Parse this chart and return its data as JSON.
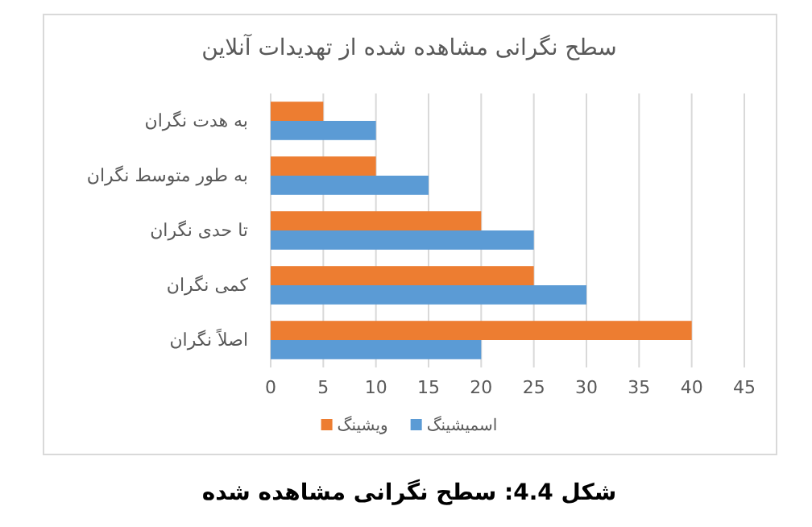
{
  "chart_data": {
    "type": "bar",
    "orientation": "horizontal",
    "title": "سطح نگرانی مشاهده شده از تهدیدات آنلاین",
    "categories": [
      "به هدت نگران",
      "به طور متوسط نگران",
      "تا حدی نگران",
      "کمی نگران",
      "اصلاً نگران"
    ],
    "series": [
      {
        "name": "اسمیشینگ",
        "color": "#5b9bd5",
        "values": [
          10,
          15,
          25,
          30,
          20
        ]
      },
      {
        "name": "ویشینگ",
        "color": "#ed7d31",
        "values": [
          5,
          10,
          20,
          25,
          40
        ]
      }
    ],
    "xlim": [
      0,
      45
    ],
    "xticks": [
      0,
      5,
      10,
      15,
      20,
      25,
      30,
      35,
      40,
      45
    ],
    "grid": "x",
    "legend": "bottom",
    "annotations": [
      "شکل 4.4: سطح نگرانی مشاهده شده"
    ]
  }
}
